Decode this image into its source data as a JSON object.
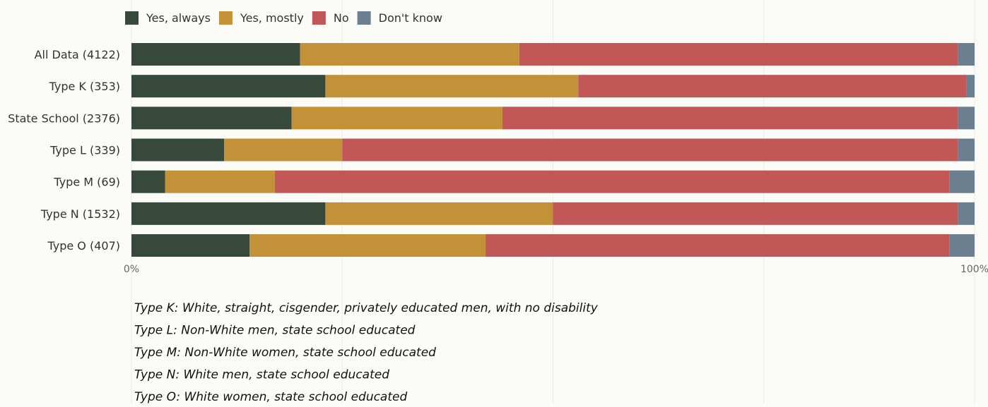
{
  "chart_data": {
    "type": "bar",
    "orientation": "horizontal",
    "stacked": true,
    "categories": [
      "All Data (4122)",
      "Type K (353)",
      "State School (2376)",
      "Type L (339)",
      "Type M (69)",
      "Type N (1532)",
      "Type O (407)"
    ],
    "series": [
      {
        "name": "Yes, always",
        "color": "#36493b",
        "values": [
          20,
          23,
          19,
          11,
          4,
          23,
          14
        ]
      },
      {
        "name": "Yes, mostly",
        "color": "#c29138",
        "values": [
          26,
          30,
          25,
          14,
          13,
          27,
          28
        ]
      },
      {
        "name": "No",
        "color": "#c25757",
        "values": [
          52,
          46,
          54,
          73,
          80,
          48,
          55
        ]
      },
      {
        "name": "Don't know",
        "color": "#6b7f90",
        "values": [
          2,
          1,
          2,
          2,
          3,
          2,
          3
        ]
      }
    ],
    "x_ticks": [
      "0%",
      "100%"
    ],
    "xlim": [
      0,
      100
    ],
    "grid": true,
    "legend_position": "top-left",
    "notes": [
      "Type K: White, straight, cisgender, privately educated men, with no disability",
      "Type L: Non-White men, state school educated",
      "Type M: Non-White women, state school educated",
      "Type N: White men, state school educated",
      "Type O: White women, state school educated"
    ]
  }
}
